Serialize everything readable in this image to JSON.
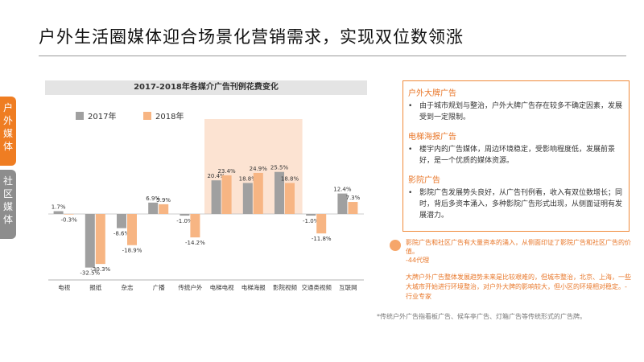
{
  "header": {
    "title": "户外生活圈媒体迎合场景化营销需求，实现双位数领涨"
  },
  "side_tabs": [
    {
      "chars": [
        "户",
        "外",
        "媒",
        "体"
      ]
    },
    {
      "chars": [
        "社",
        "区",
        "媒",
        "体"
      ]
    }
  ],
  "colors": {
    "accent": "#ef7d22",
    "series_2017": "#a0a0a0",
    "series_2018": "#f7b583",
    "highlight": "#fbd9c3",
    "tab_gray": "#8d8d8d"
  },
  "chart_data": {
    "type": "bar",
    "title": "2017-2018年各媒介广告刊例花费变化",
    "categories": [
      "电视",
      "报纸",
      "杂志",
      "广播",
      "传统户外",
      "电梯电视",
      "电梯海报",
      "影院视频",
      "交通类视频",
      "互联网"
    ],
    "category_labels": [
      "电视",
      "报纸",
      "杂志",
      "广播",
      "传统户外",
      "电梯电视",
      "电梯海报",
      "影院视频",
      "交通类视频",
      "互联网"
    ],
    "series": [
      {
        "name": "2017年",
        "values": [
          1.7,
          -32.5,
          -8.6,
          6.9,
          -1.0,
          20.4,
          18.8,
          25.5,
          -1.0,
          12.4
        ]
      },
      {
        "name": "2018年",
        "values": [
          -0.3,
          -30.3,
          -18.9,
          5.9,
          -14.2,
          23.4,
          24.9,
          18.8,
          -11.8,
          7.3
        ]
      }
    ],
    "data_labels": {
      "s2017": [
        "1.7%",
        "-32.5%",
        "-8.6%",
        "6.9%",
        "-1.0%",
        "20.4%",
        "18.8%",
        "25.5%",
        "-1.0%",
        "12.4%"
      ],
      "s2018": [
        "-0.3%",
        "-30.3%",
        "-18.9%",
        "5.9%",
        "-14.2%",
        "23.4%",
        "24.9%",
        "18.8%",
        "-11.8%",
        "7.3%"
      ]
    },
    "ylim": [
      -35,
      28
    ],
    "highlight_categories": [
      "电梯电视",
      "电梯海报",
      "影院视频"
    ],
    "legend_position": "top-left",
    "xlabel": "",
    "ylabel": ""
  },
  "panel": {
    "sections": [
      {
        "title": "户外大牌广告",
        "text": "由于城市规划与整治，户外大牌广告存在较多不确定因素，发展受到一定限制。"
      },
      {
        "title": "电梯海报广告",
        "text": "楼宇内的广告媒体，周边环境稳定，受影响程度低，发展前景好，是一个优质的媒体资源。"
      },
      {
        "title": "影院广告",
        "text": "影院广告发展势头良好，从广告刊例看，收入有双位数增长；同时，背后多资本涌入，多种影院广告形式出现，从侧面证明有发展潜力。"
      }
    ]
  },
  "notes": {
    "note1": "影院广告和社区广告有大量资本的涌入，从侧面印证了影院广告和社区广告的价值。",
    "note1_source": "-44代理",
    "note2": "大牌户外广告整体发展趋势未来是比较艰难的，但城市整治，北京、上海，一些大城市开始进行环境整治，对户外大牌的影响较大，但小区的环境相对稳定。-行业专家",
    "footnote": "*传统户外广告指看板广告、候车亭广告、灯箱广告等传统形式的广告牌。"
  }
}
